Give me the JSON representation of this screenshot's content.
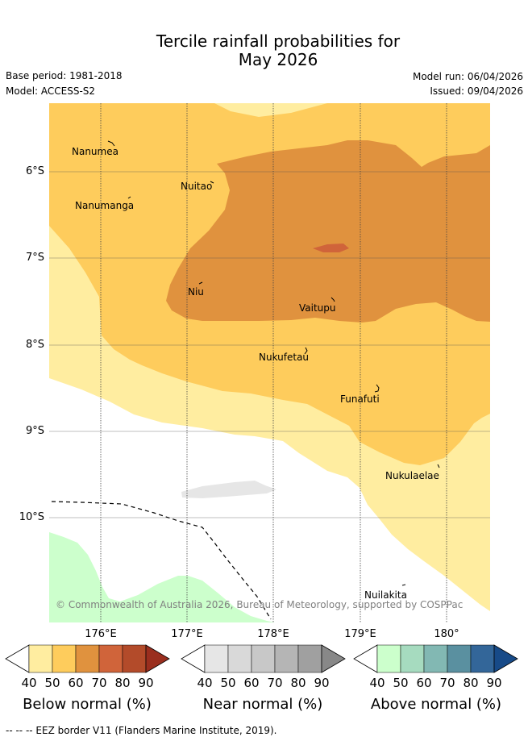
{
  "title_line1": "Tercile rainfall probabilities for",
  "title_line2": "May 2026",
  "base_period": "Base period: 1981-2018",
  "model": "Model: ACCESS-S2",
  "model_run": "Model run: 06/04/2026",
  "issued": "Issued: 09/04/2026",
  "lat_labels": [
    "6°S",
    "7°S",
    "8°S",
    "9°S",
    "10°S"
  ],
  "lon_labels": [
    "176°E",
    "177°E",
    "178°E",
    "179°E",
    "180°"
  ],
  "places": {
    "nanumea": "Nanumea",
    "nuitao": "Nuitao",
    "nanumanga": "Nanumanga",
    "niu": "Niu",
    "vaitupu": "Vaitupu",
    "nukufetau": "Nukufetau",
    "funafuti": "Funafuti",
    "nukulaelae": "Nukulaelae",
    "nuilakita": "Nuilakita"
  },
  "copyright": "© Commonwealth of Australia 2026, Bureau of Meteorology, supported by COSPPac",
  "colorbars": [
    {
      "title": "Below normal (%)",
      "ticks": [
        "40",
        "50",
        "60",
        "70",
        "80",
        "90"
      ],
      "colors": [
        "#ffeda0",
        "#fecc5c",
        "#e0923e",
        "#d0643a",
        "#b34b2a",
        "#9a2e1e"
      ]
    },
    {
      "title": "Near normal (%)",
      "ticks": [
        "40",
        "50",
        "60",
        "70",
        "80",
        "90"
      ],
      "colors": [
        "#e6e6e6",
        "#d9d9d9",
        "#c8c8c8",
        "#b5b5b5",
        "#a0a0a0",
        "#888888"
      ]
    },
    {
      "title": "Above normal (%)",
      "ticks": [
        "40",
        "50",
        "60",
        "70",
        "80",
        "90"
      ],
      "colors": [
        "#ccffcc",
        "#a6dbbf",
        "#82b8b3",
        "#5a90a0",
        "#336699",
        "#174a88"
      ]
    }
  ],
  "footnote": "-- -- -- EEZ border V11 (Flanders Marine Institute, 2019)."
}
